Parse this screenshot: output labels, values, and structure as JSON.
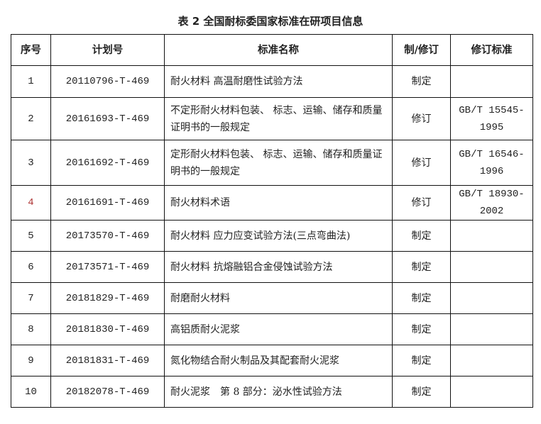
{
  "title": "表 2 全国耐标委国家标准在研项目信息",
  "headers": [
    "序号",
    "计划号",
    "标准名称",
    "制/修订",
    "修订标准"
  ],
  "rows": [
    {
      "no": "1",
      "plan": "20110796-T-469",
      "name": "耐火材料 高温耐磨性试验方法",
      "type": "制定",
      "std": ""
    },
    {
      "no": "2",
      "plan": "20161693-T-469",
      "name": "不定形耐火材料包装、 标志、运输、储存和质量证明书的一般规定",
      "type": "修订",
      "std": "GB/T 15545-1995"
    },
    {
      "no": "3",
      "plan": "20161692-T-469",
      "name": "定形耐火材料包装、 标志、运输、储存和质量证明书的一般规定",
      "type": "修订",
      "std": "GB/T 16546-1996"
    },
    {
      "no": "4",
      "plan": "20161691-T-469",
      "name": "耐火材料术语",
      "type": "修订",
      "std": "GB/T 18930-2002"
    },
    {
      "no": "5",
      "plan": "20173570-T-469",
      "name": "耐火材料 应力应变试验方法(三点弯曲法)",
      "type": "制定",
      "std": ""
    },
    {
      "no": "6",
      "plan": "20173571-T-469",
      "name": "耐火材料 抗熔融铝合金侵蚀试验方法",
      "type": "制定",
      "std": ""
    },
    {
      "no": "7",
      "plan": "20181829-T-469",
      "name": "耐磨耐火材料",
      "type": "制定",
      "std": ""
    },
    {
      "no": "8",
      "plan": "20181830-T-469",
      "name": "高铝质耐火泥浆",
      "type": "制定",
      "std": ""
    },
    {
      "no": "9",
      "plan": "20181831-T-469",
      "name": "氮化物结合耐火制品及其配套耐火泥浆",
      "type": "制定",
      "std": ""
    },
    {
      "no": "10",
      "plan": "20182078-T-469",
      "name": "耐火泥浆　第 8 部分：泌水性试验方法",
      "type": "制定",
      "std": ""
    }
  ]
}
